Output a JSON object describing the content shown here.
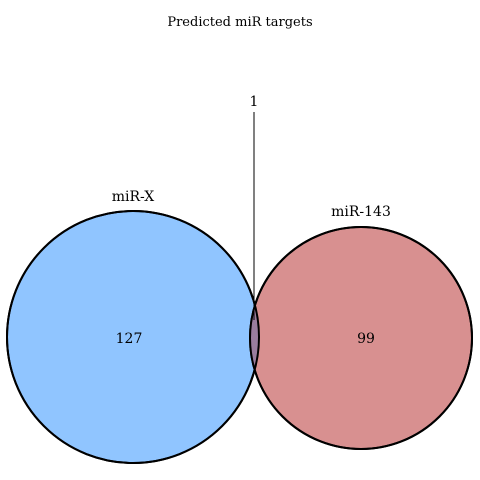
{
  "title": "Predicted miR targets",
  "sets": [
    {
      "name": "miR-X",
      "only_count": "127",
      "fill_color": "#90c5ff"
    },
    {
      "name": "miR-143",
      "only_count": "99",
      "fill_color": "#d89090"
    }
  ],
  "intersection": {
    "count": "1",
    "fill_color": "#9a7d9e"
  },
  "outline_color": "#000000"
}
